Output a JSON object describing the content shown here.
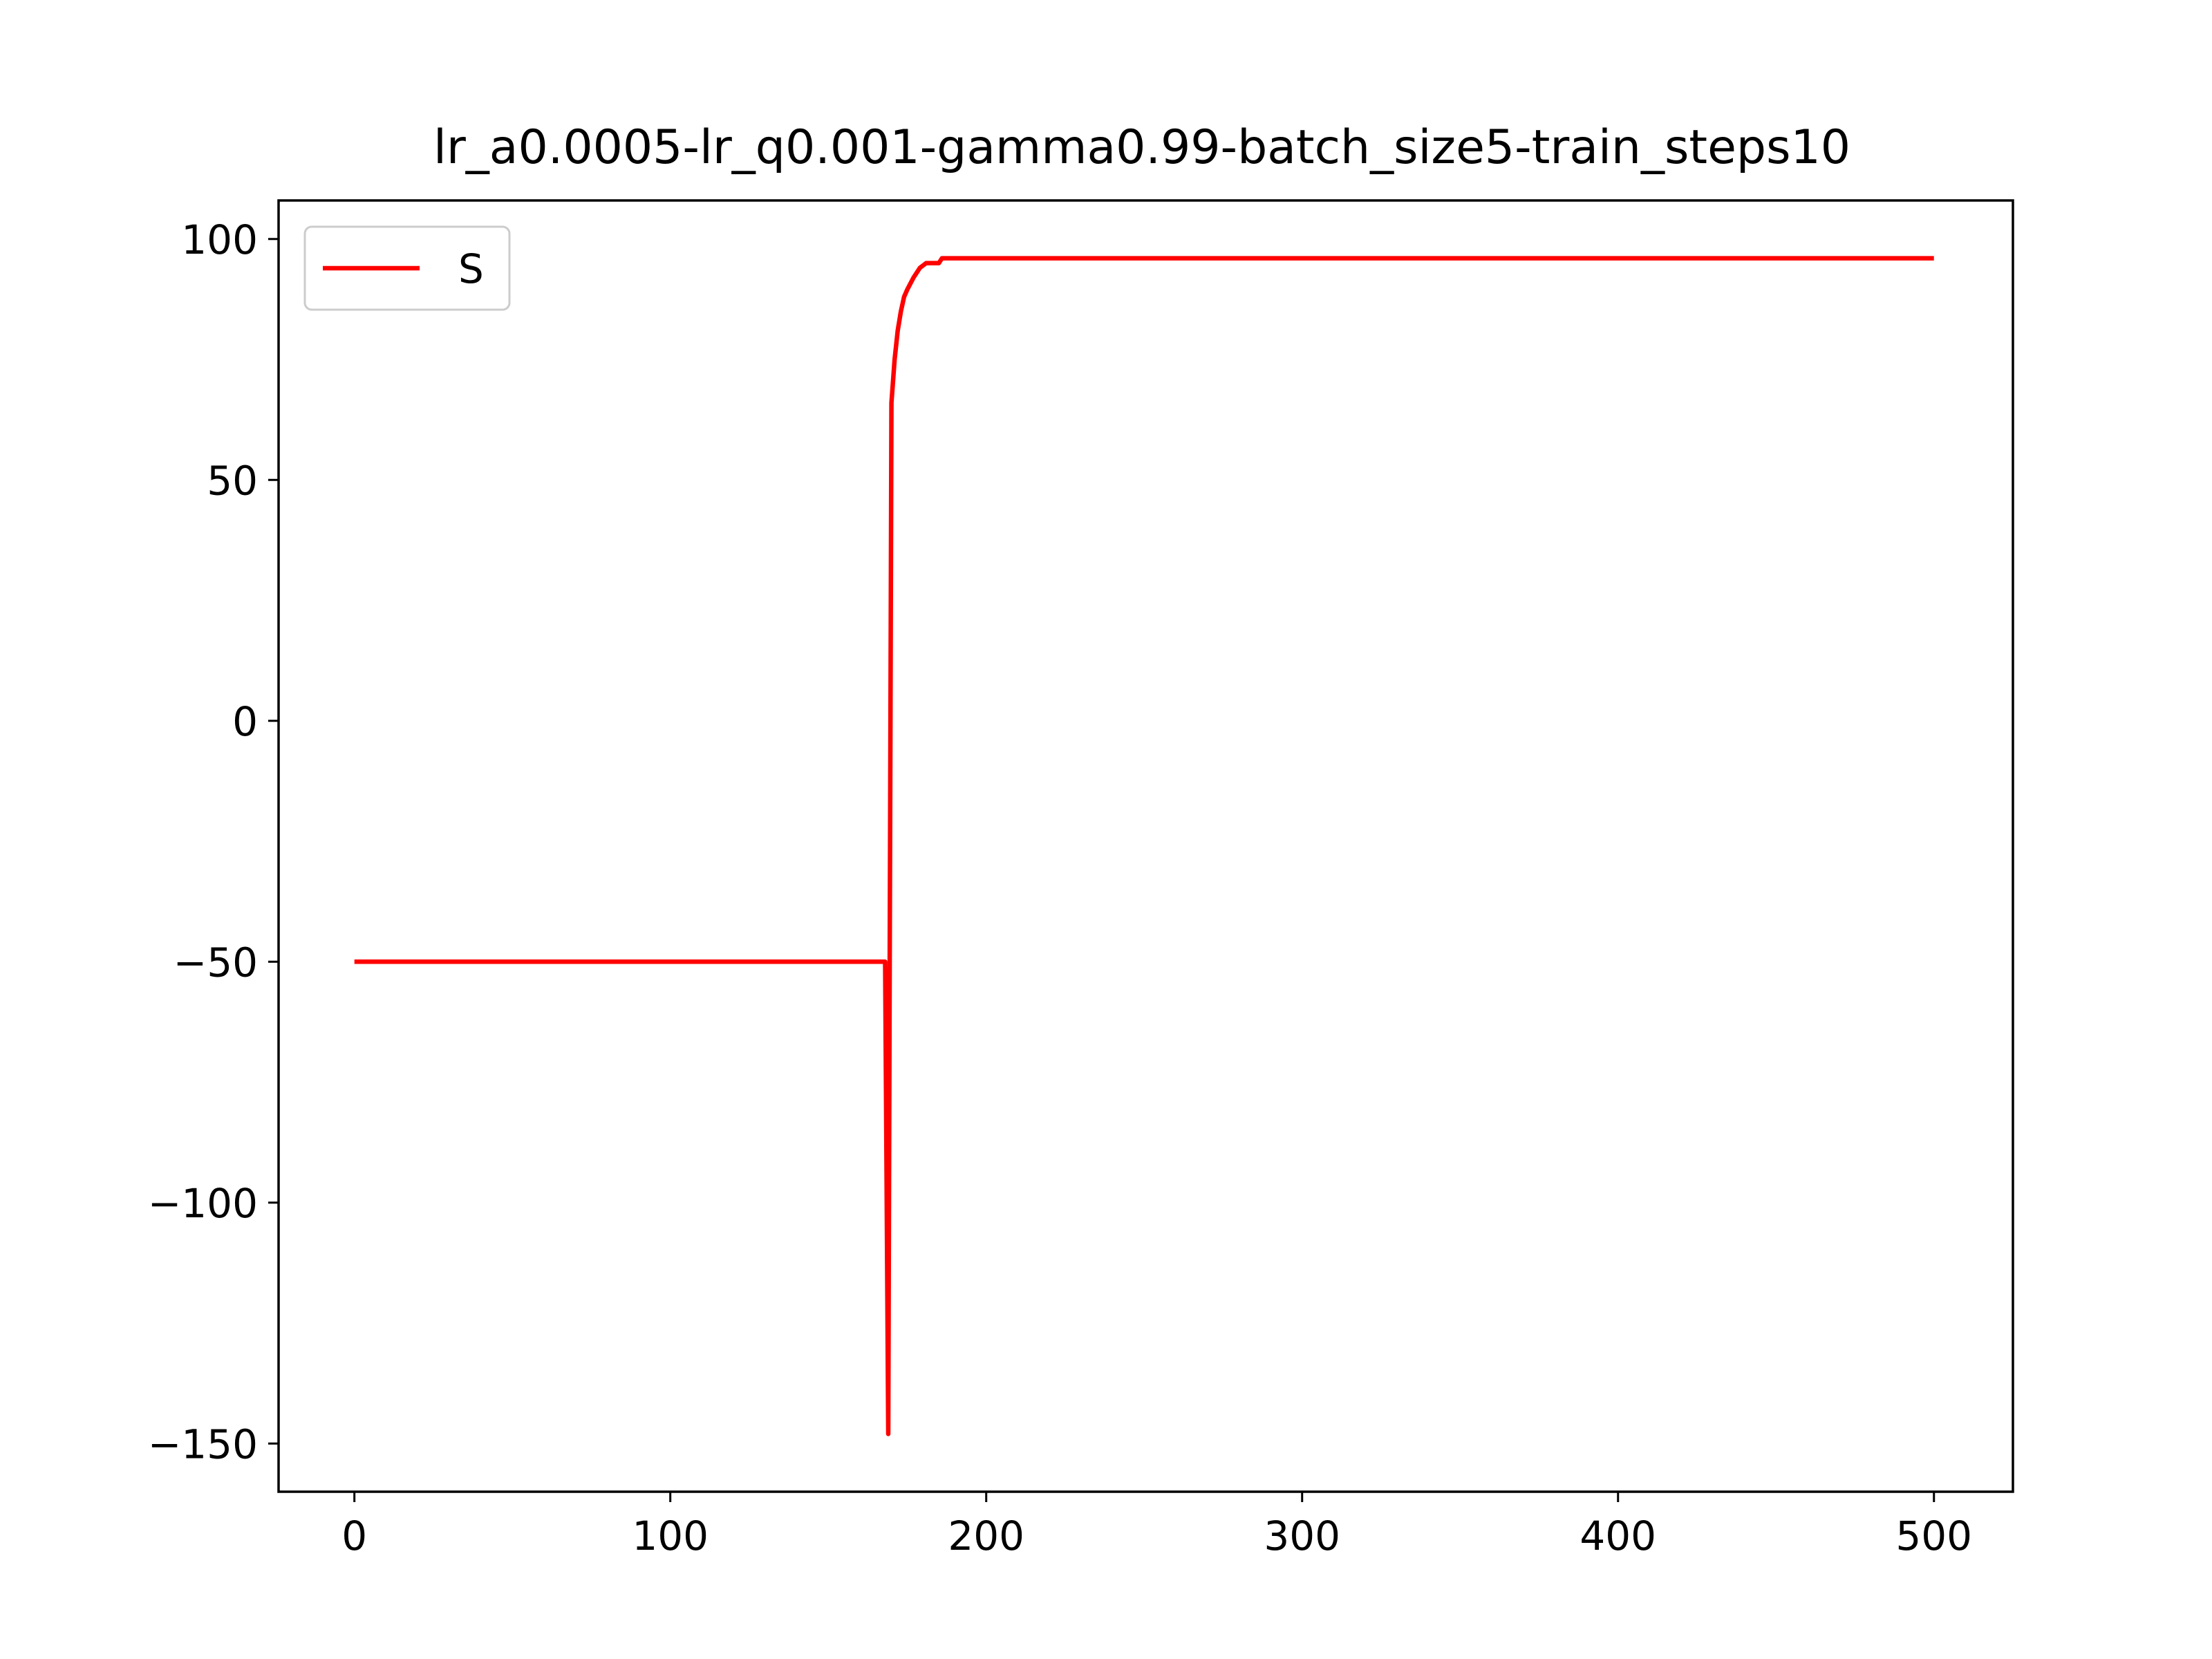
{
  "chart_data": {
    "type": "line",
    "title": "lr_a0.0005-lr_q0.001-gamma0.99-batch_size5-train_steps10",
    "xlabel": "",
    "ylabel": "",
    "xlim": [
      -24,
      525
    ],
    "ylim": [
      -160,
      108
    ],
    "xticks": [
      0,
      100,
      200,
      300,
      400,
      500
    ],
    "xtick_labels": [
      "0",
      "100",
      "200",
      "300",
      "400",
      "500"
    ],
    "yticks": [
      100,
      50,
      0,
      -50,
      -100,
      -150
    ],
    "ytick_labels": [
      "100",
      "50",
      "0",
      "−50",
      "−100",
      "−150"
    ],
    "grid": false,
    "legend_position": "upper-left",
    "series": [
      {
        "name": "S",
        "color": "#ff0000",
        "x": [
          0,
          168,
          169,
          170,
          171,
          172,
          173,
          174,
          175,
          177,
          179,
          181,
          183,
          185,
          186,
          500
        ],
        "y": [
          -50,
          -50,
          -148,
          66,
          75,
          81,
          85,
          88,
          89.5,
          92,
          94,
          95,
          95,
          95,
          96,
          96
        ]
      }
    ]
  }
}
